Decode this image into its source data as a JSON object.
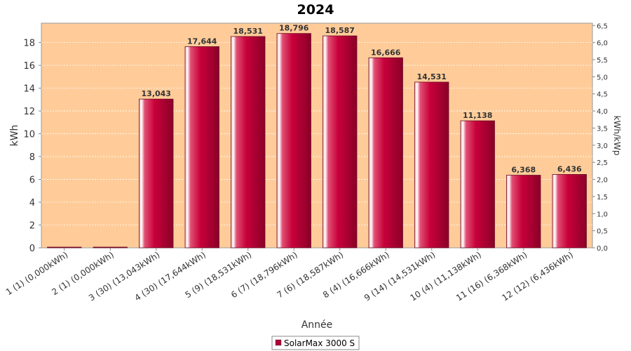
{
  "chart_data": {
    "type": "bar",
    "title": "2024",
    "xlabel": "Année",
    "ylabel": "kWh",
    "ylabel_right": "kWh/kWp",
    "ylim": [
      0,
      19.7
    ],
    "ylim_right": [
      0,
      6.567
    ],
    "yticks": [
      "0",
      "2",
      "4",
      "6",
      "8",
      "10",
      "12",
      "14",
      "16",
      "18"
    ],
    "yticks_right": [
      "0,0",
      "0,5",
      "1,0",
      "1,5",
      "2,0",
      "2,5",
      "3,0",
      "3,5",
      "4,0",
      "4,5",
      "5,0",
      "5,5",
      "6,0",
      "6,5"
    ],
    "categories": [
      "1 (1)  (0,000kWh)",
      "2 (1)  (0,000kWh)",
      "3 (30)  (13,043kWh)",
      "4 (30)  (17,644kWh)",
      "5 (9)  (18,531kWh)",
      "6 (7)  (18,796kWh)",
      "7 (6)  (18,587kWh)",
      "8 (4)  (16,666kWh)",
      "9 (14)  (14,531kWh)",
      "10 (4)  (11,138kWh)",
      "11 (16)  (6,368kWh)",
      "12 (12)  (6,436kWh)"
    ],
    "series": [
      {
        "name": "SolarMax 3000 S",
        "color": "#b00030",
        "values": [
          0,
          0,
          13.043,
          17.644,
          18.531,
          18.796,
          18.587,
          16.666,
          14.531,
          11.138,
          6.368,
          6.436
        ],
        "labels": [
          "",
          "",
          "13,043",
          "17,644",
          "18,531",
          "18,796",
          "18,587",
          "16,666",
          "14,531",
          "11,138",
          "6,368",
          "6,436"
        ]
      }
    ],
    "plot_background": "#ffcc99",
    "grid": true,
    "legend_position": "bottom"
  }
}
